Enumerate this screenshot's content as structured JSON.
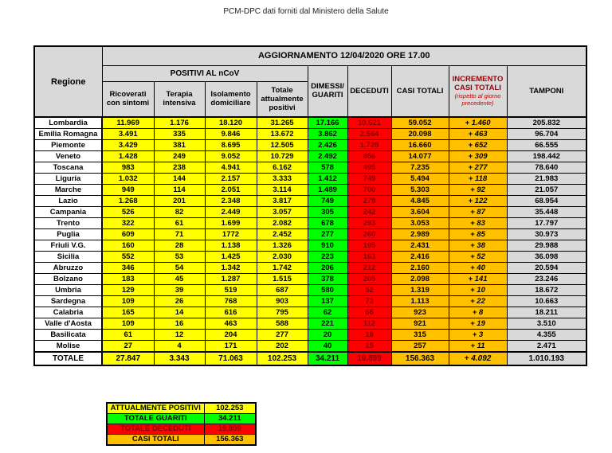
{
  "page_title": "PCM-DPC dati forniti dal Ministero della Salute",
  "table_header": {
    "update": "AGGIORNAMENTO 12/04/2020 ORE 17.00",
    "region_col": "Regione",
    "positivi_group": "POSITIVI AL nCoV",
    "incremento_note": "(rispetto al giorno precedente)"
  },
  "colors": {
    "yellow": "#FFFF00",
    "green": "#00FF00",
    "red": "#FF0000",
    "orange": "#FFC000",
    "header_grey": "#D9D9D9",
    "deceduti_text": "#800000",
    "incremento_header_text": "#9C0006",
    "incremento_note_text": "#C00000"
  },
  "chart_data": {
    "type": "table",
    "title": "AGGIORNAMENTO 12/04/2020 ORE 17.00",
    "columns": [
      "Regione",
      "Ricoverati con sintomi",
      "Terapia intensiva",
      "Isolamento domiciliare",
      "Totale attualmente positivi",
      "DIMESSI/ GUARITI",
      "DECEDUTI",
      "CASI TOTALI",
      "INCREMENTO CASI TOTALI",
      "TAMPONI"
    ],
    "rows": [
      {
        "regione": "Lombardia",
        "values": [
          "11.969",
          "1.176",
          "18.120",
          "31.265",
          "17.166",
          "10.621",
          "59.052",
          "+ 1.460",
          "205.832"
        ]
      },
      {
        "regione": "Emilia Romagna",
        "values": [
          "3.491",
          "335",
          "9.846",
          "13.672",
          "3.862",
          "2.564",
          "20.098",
          "+ 463",
          "96.704"
        ]
      },
      {
        "regione": "Piemonte",
        "values": [
          "3.429",
          "381",
          "8.695",
          "12.505",
          "2.426",
          "1.729",
          "16.660",
          "+ 652",
          "66.555"
        ]
      },
      {
        "regione": "Veneto",
        "values": [
          "1.428",
          "249",
          "9.052",
          "10.729",
          "2.492",
          "856",
          "14.077",
          "+ 309",
          "198.442"
        ]
      },
      {
        "regione": "Toscana",
        "values": [
          "983",
          "238",
          "4.941",
          "6.162",
          "578",
          "495",
          "7.235",
          "+ 277",
          "78.640"
        ]
      },
      {
        "regione": "Liguria",
        "values": [
          "1.032",
          "144",
          "2.157",
          "3.333",
          "1.412",
          "749",
          "5.494",
          "+ 118",
          "21.983"
        ]
      },
      {
        "regione": "Marche",
        "values": [
          "949",
          "114",
          "2.051",
          "3.114",
          "1.489",
          "700",
          "5.303",
          "+ 92",
          "21.057"
        ]
      },
      {
        "regione": "Lazio",
        "values": [
          "1.268",
          "201",
          "2.348",
          "3.817",
          "749",
          "279",
          "4.845",
          "+ 122",
          "68.954"
        ]
      },
      {
        "regione": "Campania",
        "values": [
          "526",
          "82",
          "2.449",
          "3.057",
          "305",
          "242",
          "3.604",
          "+ 87",
          "35.448"
        ]
      },
      {
        "regione": "Trento",
        "values": [
          "322",
          "61",
          "1.699",
          "2.082",
          "678",
          "293",
          "3.053",
          "+ 83",
          "17.797"
        ]
      },
      {
        "regione": "Puglia",
        "values": [
          "609",
          "71",
          "1772",
          "2.452",
          "277",
          "260",
          "2.989",
          "+ 85",
          "30.973"
        ]
      },
      {
        "regione": "Friuli V.G.",
        "values": [
          "160",
          "28",
          "1.138",
          "1.326",
          "910",
          "195",
          "2.431",
          "+ 38",
          "29.988"
        ]
      },
      {
        "regione": "Sicilia",
        "values": [
          "552",
          "53",
          "1.425",
          "2.030",
          "223",
          "163",
          "2.416",
          "+ 52",
          "36.098"
        ]
      },
      {
        "regione": "Abruzzo",
        "values": [
          "346",
          "54",
          "1.342",
          "1.742",
          "206",
          "212",
          "2.160",
          "+ 40",
          "20.594"
        ]
      },
      {
        "regione": "Bolzano",
        "values": [
          "183",
          "45",
          "1.287",
          "1.515",
          "378",
          "205",
          "2.098",
          "+ 141",
          "23.246"
        ]
      },
      {
        "regione": "Umbria",
        "values": [
          "129",
          "39",
          "519",
          "687",
          "580",
          "52",
          "1.319",
          "+ 10",
          "18.672"
        ]
      },
      {
        "regione": "Sardegna",
        "values": [
          "109",
          "26",
          "768",
          "903",
          "137",
          "73",
          "1.113",
          "+ 22",
          "10.663"
        ]
      },
      {
        "regione": "Calabria",
        "values": [
          "165",
          "14",
          "616",
          "795",
          "62",
          "66",
          "923",
          "+ 8",
          "18.211"
        ]
      },
      {
        "regione": "Valle d'Aosta",
        "values": [
          "109",
          "16",
          "463",
          "588",
          "221",
          "112",
          "921",
          "+ 19",
          "3.510"
        ]
      },
      {
        "regione": "Basilicata",
        "values": [
          "61",
          "12",
          "204",
          "277",
          "20",
          "18",
          "315",
          "+ 3",
          "4.355"
        ]
      },
      {
        "regione": "Molise",
        "values": [
          "27",
          "4",
          "171",
          "202",
          "40",
          "15",
          "257",
          "+ 11",
          "2.471"
        ]
      }
    ],
    "total_row": {
      "regione": "TOTALE",
      "values": [
        "27.847",
        "3.343",
        "71.063",
        "102.253",
        "34.211",
        "19.899",
        "156.363",
        "+ 4.092",
        "1.010.193"
      ]
    },
    "summary": [
      {
        "label": "ATTUALMENTE POSITIVI",
        "value": "102.253",
        "color": "#FFFF00",
        "text_color": "#000000"
      },
      {
        "label": "TOTALE GUARITI",
        "value": "34.211",
        "color": "#00FF00",
        "text_color": "#000000"
      },
      {
        "label": "TOTALE DECEDUTI",
        "value": "19.899",
        "color": "#FF0000",
        "text_color": "#800000"
      },
      {
        "label": "CASI TOTALI",
        "value": "156.363",
        "color": "#FFC000",
        "text_color": "#000000"
      }
    ]
  }
}
